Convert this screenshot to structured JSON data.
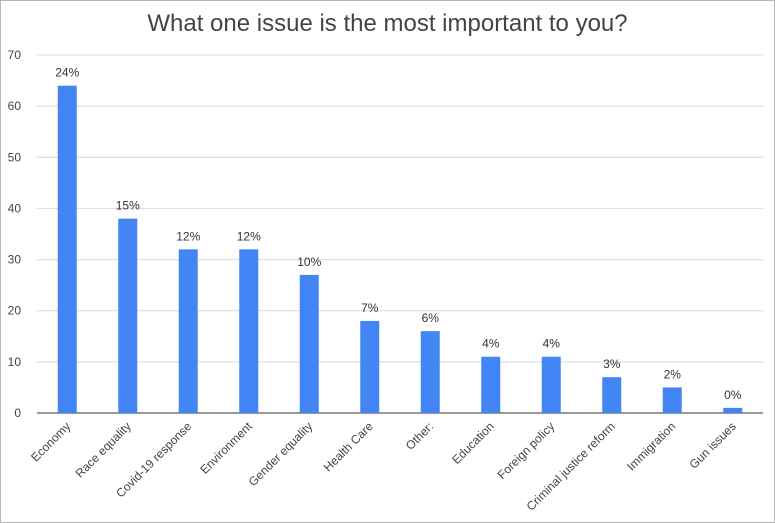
{
  "chart_data": {
    "type": "bar",
    "title": "What one issue is the most important to you?",
    "xlabel": "",
    "ylabel": "",
    "ylim": [
      0,
      70
    ],
    "yticks": [
      0,
      10,
      20,
      30,
      40,
      50,
      60,
      70
    ],
    "grid": true,
    "legend": "none",
    "bar_color": "#4285f4",
    "categories": [
      "Economy",
      "Race equality",
      "Covid-19 response",
      "Environment",
      "Gender equality",
      "Health Care",
      "Other:",
      "Education",
      "Foreign policy",
      "Criminal justice reform",
      "Immigration",
      "Gun issues"
    ],
    "values": [
      64,
      38,
      32,
      32,
      27,
      18,
      16,
      11,
      11,
      7,
      5,
      1
    ],
    "data_labels": [
      "24%",
      "15%",
      "12%",
      "12%",
      "10%",
      "7%",
      "6%",
      "4%",
      "4%",
      "3%",
      "2%",
      "0%"
    ]
  }
}
